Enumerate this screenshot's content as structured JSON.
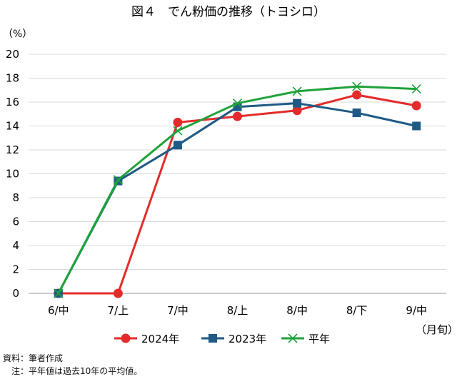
{
  "chart_data": {
    "type": "line",
    "title": "図４　でん粉価の推移（トヨシロ）",
    "ylabel": "（%）",
    "xlabel": "（月旬）",
    "ylim": [
      0,
      20
    ],
    "yticks": [
      0,
      2,
      4,
      6,
      8,
      10,
      12,
      14,
      16,
      18,
      20
    ],
    "categories": [
      "6/中",
      "7/上",
      "7/中",
      "8/上",
      "8/中",
      "8/下",
      "9/中"
    ],
    "grid": true,
    "legend_position": "bottom",
    "series": [
      {
        "name": "2024年",
        "values": [
          0,
          0,
          14.3,
          14.8,
          15.3,
          16.6,
          15.7
        ],
        "color": "#e32b2b",
        "marker": "circle"
      },
      {
        "name": "2023年",
        "values": [
          0,
          9.4,
          12.4,
          15.6,
          15.9,
          15.1,
          14.0
        ],
        "color": "#1f5a85",
        "marker": "square"
      },
      {
        "name": "平年",
        "values": [
          0,
          9.5,
          13.6,
          15.9,
          16.9,
          17.3,
          17.1
        ],
        "color": "#1fa23a",
        "marker": "x"
      }
    ]
  },
  "notes": {
    "source": "資料：筆者作成",
    "note": "　注：平年値は過去10年の平均値。"
  }
}
